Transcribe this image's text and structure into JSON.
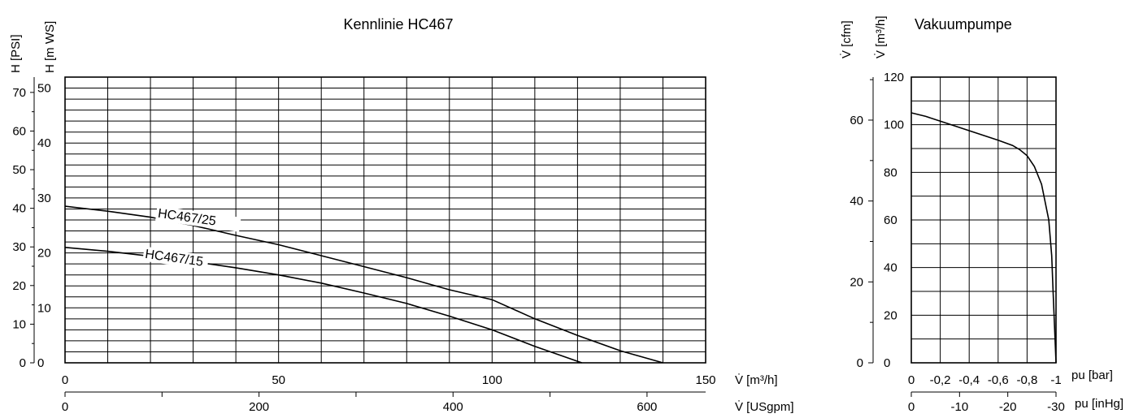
{
  "chart_data": [
    {
      "type": "line",
      "title": "Kennlinie HC467",
      "y_axes": [
        {
          "label": "H [PSI]",
          "ticks": [
            0,
            10,
            20,
            30,
            40,
            50,
            60,
            70
          ]
        },
        {
          "label": "H [m WS]",
          "ticks": [
            0,
            10,
            20,
            30,
            40,
            50
          ]
        }
      ],
      "x_axes": [
        {
          "label": "V̇ [m³/h]",
          "ticks": [
            0,
            50,
            100,
            150
          ]
        },
        {
          "label": "V̇ [USgpm]",
          "ticks": [
            0,
            200,
            400,
            600
          ]
        }
      ],
      "xlim": [
        0,
        150
      ],
      "ylim": [
        0,
        52
      ],
      "grid": true,
      "series": [
        {
          "name": "HC467/25",
          "x": [
            0,
            10,
            20,
            30,
            40,
            50,
            60,
            70,
            80,
            90,
            100,
            110,
            120,
            130,
            140
          ],
          "y": [
            28.5,
            27.6,
            26.5,
            25.0,
            23.2,
            21.5,
            19.5,
            17.5,
            15.5,
            13.3,
            11.5,
            8.0,
            5.0,
            2.2,
            0
          ]
        },
        {
          "name": "HC467/15",
          "x": [
            0,
            10,
            20,
            30,
            40,
            50,
            60,
            70,
            80,
            90,
            100,
            110,
            121
          ],
          "y": [
            21.0,
            20.3,
            19.4,
            18.4,
            17.3,
            16.0,
            14.5,
            12.7,
            10.8,
            8.5,
            6.0,
            3.0,
            0
          ]
        }
      ]
    },
    {
      "type": "line",
      "title": "Vakuumpumpe",
      "y_axes": [
        {
          "label": "V̇ [cfm]",
          "ticks": [
            0,
            20,
            40,
            60
          ]
        },
        {
          "label": "V̇ [m³/h]",
          "ticks": [
            0,
            20,
            40,
            60,
            80,
            100,
            120
          ]
        }
      ],
      "x_axes": [
        {
          "label": "pu [bar]",
          "ticks": [
            "0",
            "-0,2",
            "-0,4",
            "-0,6",
            "-0,8",
            "-1"
          ]
        },
        {
          "label": "pu [inHg]",
          "ticks": [
            "0",
            "-10",
            "-20",
            "-30"
          ]
        }
      ],
      "xlim": [
        0,
        -1
      ],
      "ylim": [
        0,
        120
      ],
      "grid": true,
      "series": [
        {
          "name": "",
          "x": [
            0,
            -0.1,
            -0.2,
            -0.3,
            -0.4,
            -0.5,
            -0.6,
            -0.7,
            -0.75,
            -0.8,
            -0.85,
            -0.9,
            -0.95,
            -0.97,
            -0.98,
            -0.99,
            -1.0
          ],
          "y": [
            105,
            103.5,
            101.5,
            99.5,
            97.5,
            95.5,
            93.5,
            91.3,
            89.5,
            87.0,
            82.5,
            75.0,
            60.0,
            45.0,
            30.0,
            15.0,
            0
          ]
        }
      ]
    }
  ]
}
